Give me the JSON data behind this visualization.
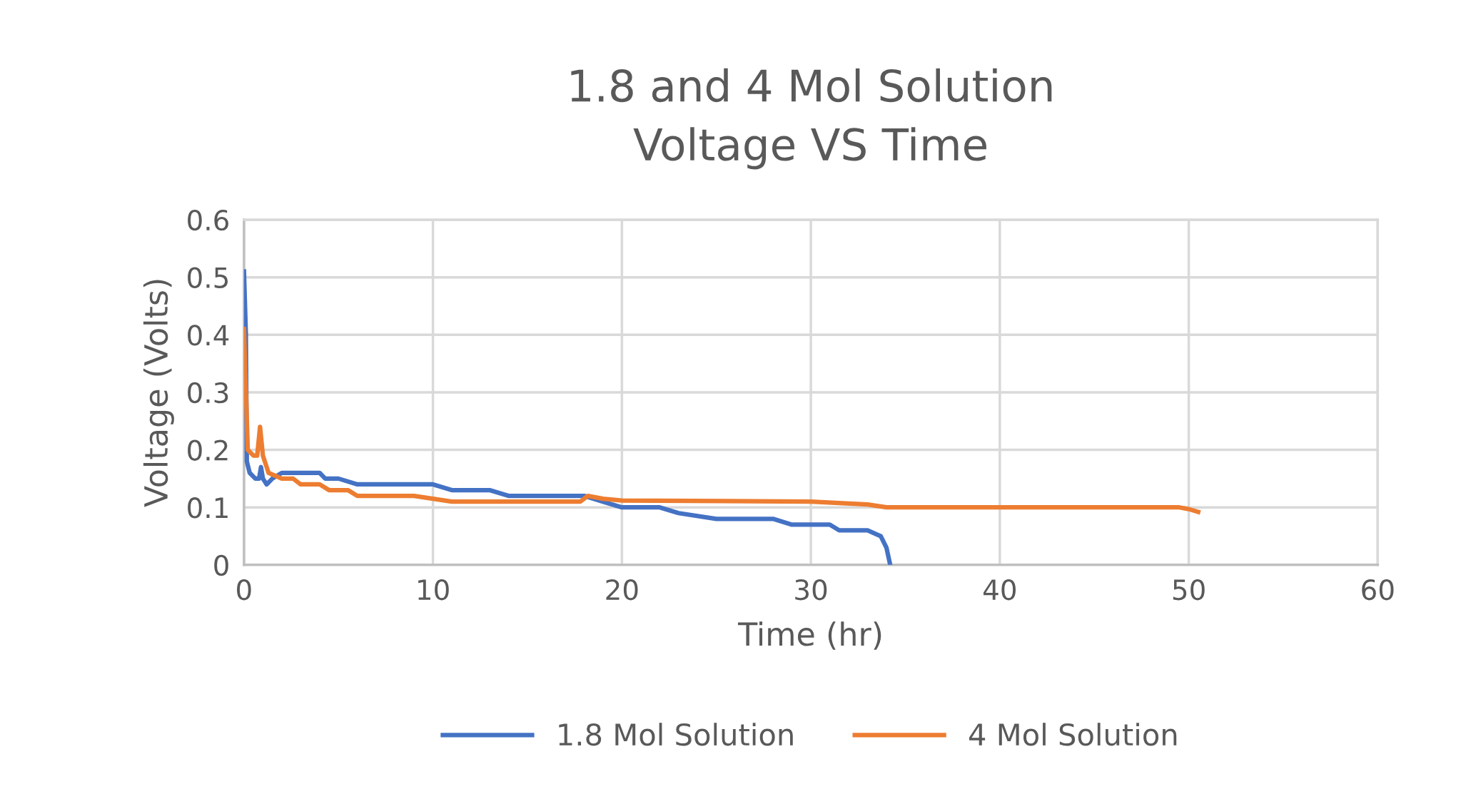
{
  "chart_data": {
    "type": "line",
    "title": "1.8 and 4 Mol Solution\nVoltage VS Time",
    "xlabel": "Time (hr)",
    "ylabel": "Voltage (Volts)",
    "xlim": [
      0,
      60
    ],
    "xticks": [
      0,
      10,
      20,
      30,
      40,
      50,
      60
    ],
    "ylim": [
      0,
      0.6
    ],
    "yticks": [
      0,
      0.1,
      0.2,
      0.3,
      0.4,
      0.5,
      0.6
    ],
    "grid": true,
    "legend": "bottom",
    "marker": "none",
    "line_style": "solid",
    "series": [
      {
        "name": "1.8 Mol Solution",
        "color": "#4472c4",
        "x": [
          0,
          0.1,
          0.15,
          0.3,
          0.6,
          0.8,
          0.9,
          1.0,
          1.2,
          1.5,
          2,
          4,
          4.3,
          5,
          6,
          9,
          10,
          11,
          13,
          14,
          18,
          19,
          20,
          22,
          23,
          25,
          28,
          29,
          31,
          31.5,
          33,
          33.7,
          34,
          34.2
        ],
        "values": [
          0.51,
          0.4,
          0.18,
          0.16,
          0.15,
          0.15,
          0.17,
          0.15,
          0.14,
          0.15,
          0.16,
          0.16,
          0.15,
          0.15,
          0.14,
          0.14,
          0.14,
          0.13,
          0.13,
          0.12,
          0.12,
          0.11,
          0.1,
          0.1,
          0.09,
          0.08,
          0.08,
          0.07,
          0.07,
          0.06,
          0.06,
          0.05,
          0.03,
          0
        ]
      },
      {
        "name": "4 Mol Solution",
        "color": "#ed7d31",
        "x": [
          0,
          0.2,
          0.5,
          0.7,
          0.85,
          1.0,
          1.3,
          2,
          2.6,
          3,
          4,
          4.5,
          5.5,
          6,
          9,
          10,
          11,
          17.8,
          18.2,
          19,
          20,
          30,
          33,
          34,
          49.5,
          50,
          50.5
        ],
        "values": [
          0.41,
          0.2,
          0.19,
          0.19,
          0.24,
          0.19,
          0.16,
          0.15,
          0.15,
          0.14,
          0.14,
          0.13,
          0.13,
          0.12,
          0.12,
          0.115,
          0.11,
          0.11,
          0.12,
          0.115,
          0.112,
          0.11,
          0.105,
          0.1,
          0.1,
          0.097,
          0.092
        ]
      }
    ]
  }
}
